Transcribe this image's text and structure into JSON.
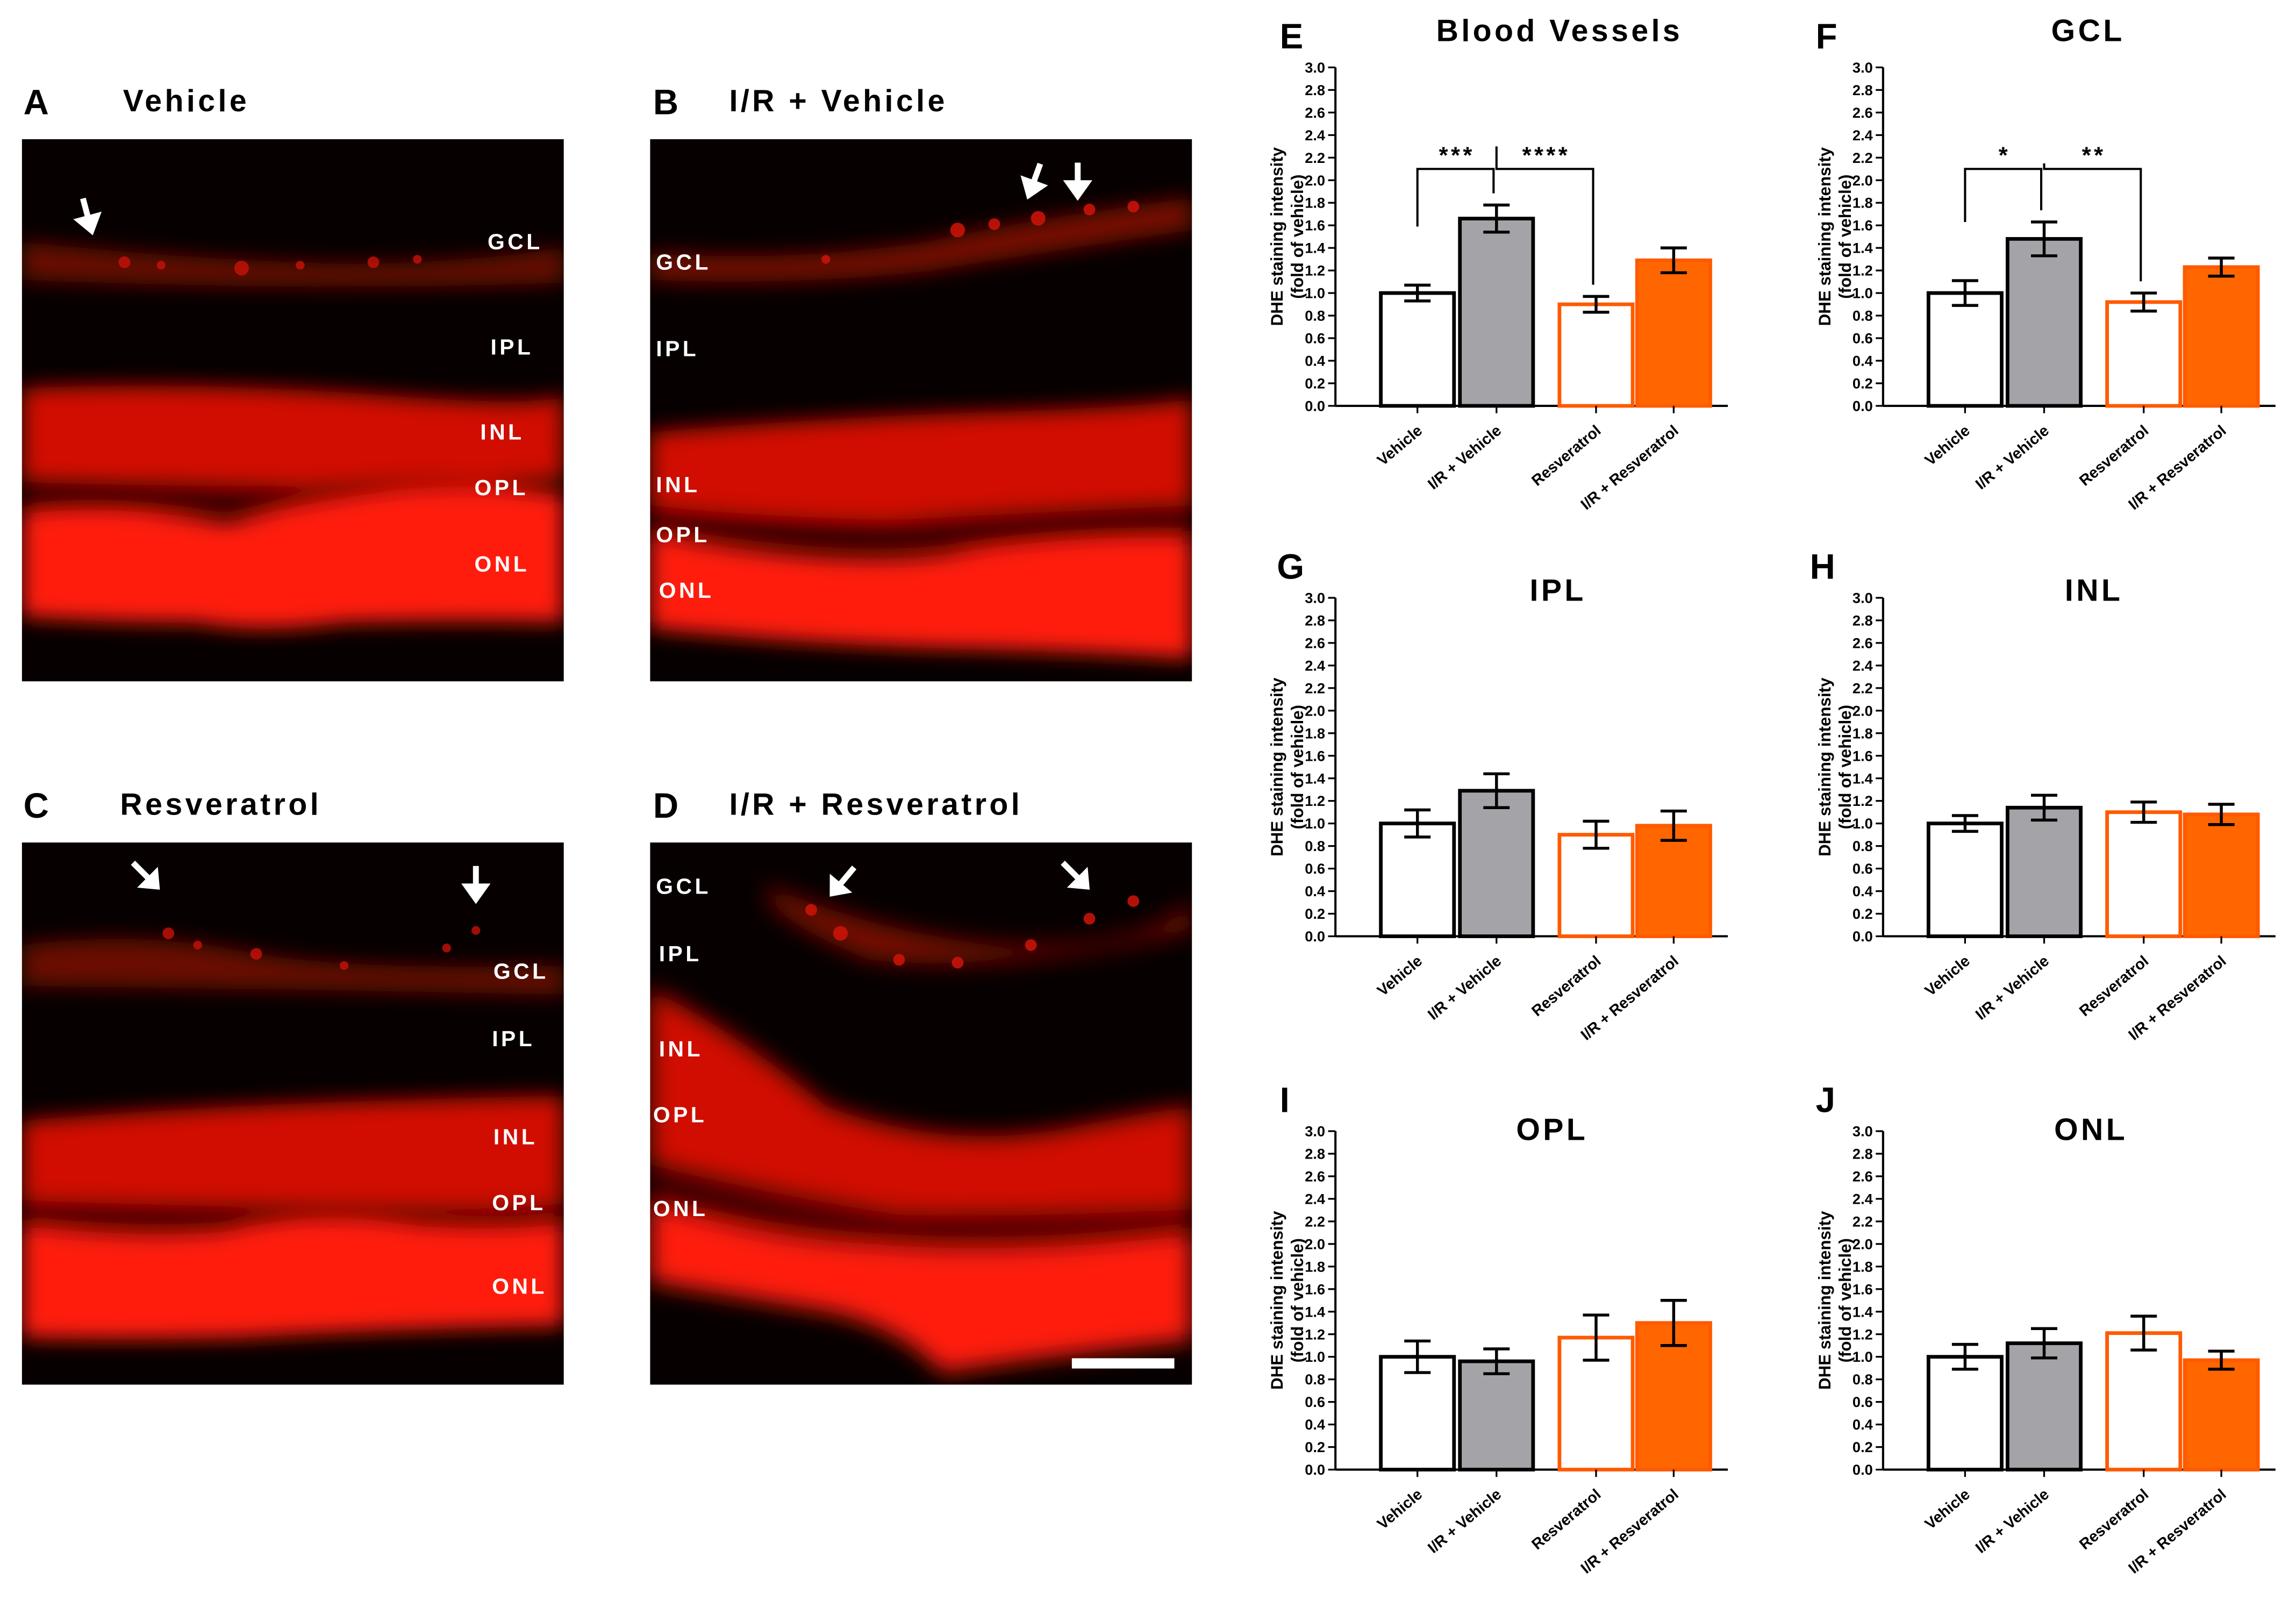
{
  "images": [
    {
      "letter": "A",
      "title": "Vehicle",
      "layers": [
        "GCL",
        "IPL",
        "INL",
        "OPL",
        "ONL"
      ]
    },
    {
      "letter": "B",
      "title": "I/R + Vehicle",
      "layers": [
        "GCL",
        "IPL",
        "INL",
        "OPL",
        "ONL"
      ]
    },
    {
      "letter": "C",
      "title": "Resveratrol",
      "layers": [
        "GCL",
        "IPL",
        "INL",
        "OPL",
        "ONL"
      ]
    },
    {
      "letter": "D",
      "title": "I/R + Resveratrol",
      "layers": [
        "GCL",
        "IPL",
        "INL",
        "OPL",
        "ONL"
      ]
    }
  ],
  "colors": {
    "fluorescence": "#ff1a0f",
    "vehicle_fill": "#ffffff",
    "vehicle_edge": "#000000",
    "ir_vehicle_fill": "#a3a3a8",
    "ir_vehicle_edge": "#000000",
    "resveratrol_fill": "#ffffff",
    "resveratrol_edge": "#ff5a00",
    "ir_resveratrol_fill": "#ff6600",
    "ir_resveratrol_edge": "#ff5a00"
  },
  "chart_data": [
    {
      "panel": "E",
      "type": "bar",
      "title": "Blood Vessels",
      "ylabel": "DHE staining intensity\n(fold of vehicle)",
      "ylim": [
        0,
        3.0
      ],
      "yticks": [
        "0.0",
        "0.2",
        "0.4",
        "0.6",
        "0.8",
        "1.0",
        "1.2",
        "1.4",
        "1.6",
        "1.8",
        "2.0",
        "2.2",
        "2.4",
        "2.6",
        "2.8",
        "3.0"
      ],
      "categories": [
        "Vehicle",
        "I/R + Vehicle",
        "Resveratrol",
        "I/R + Resveratrol"
      ],
      "values": [
        1.0,
        1.66,
        0.9,
        1.29
      ],
      "errors": [
        0.07,
        0.12,
        0.07,
        0.11
      ],
      "significance": [
        {
          "from": 0,
          "to": 1,
          "label": "***"
        },
        {
          "from": 1,
          "to": 2,
          "label": "****"
        }
      ]
    },
    {
      "panel": "F",
      "type": "bar",
      "title": "GCL",
      "ylabel": "DHE staining intensity\n(fold of vehicle)",
      "ylim": [
        0,
        3.0
      ],
      "yticks": [
        "0.0",
        "0.2",
        "0.4",
        "0.6",
        "0.8",
        "1.0",
        "1.2",
        "1.4",
        "1.6",
        "1.8",
        "2.0",
        "2.2",
        "2.4",
        "2.6",
        "2.8",
        "3.0"
      ],
      "categories": [
        "Vehicle",
        "I/R + Vehicle",
        "Resveratrol",
        "I/R + Resveratrol"
      ],
      "values": [
        1.0,
        1.48,
        0.92,
        1.23
      ],
      "errors": [
        0.11,
        0.15,
        0.08,
        0.08
      ],
      "significance": [
        {
          "from": 0,
          "to": 1,
          "label": "*"
        },
        {
          "from": 1,
          "to": 2,
          "label": "**"
        }
      ]
    },
    {
      "panel": "G",
      "type": "bar",
      "title": "IPL",
      "ylabel": "DHE staining intensity\n(fold of vehicle)",
      "ylim": [
        0,
        3.0
      ],
      "yticks": [
        "0.0",
        "0.2",
        "0.4",
        "0.6",
        "0.8",
        "1.0",
        "1.2",
        "1.4",
        "1.6",
        "1.8",
        "2.0",
        "2.2",
        "2.4",
        "2.6",
        "2.8",
        "3.0"
      ],
      "categories": [
        "Vehicle",
        "I/R + Vehicle",
        "Resveratrol",
        "I/R + Resveratrol"
      ],
      "values": [
        1.0,
        1.29,
        0.9,
        0.98
      ],
      "errors": [
        0.12,
        0.15,
        0.12,
        0.13
      ],
      "significance": []
    },
    {
      "panel": "H",
      "type": "bar",
      "title": "INL",
      "ylabel": "DHE staining intensity\n(fold of vehicle)",
      "ylim": [
        0,
        3.0
      ],
      "yticks": [
        "0.0",
        "0.2",
        "0.4",
        "0.6",
        "0.8",
        "1.0",
        "1.2",
        "1.4",
        "1.6",
        "1.8",
        "2.0",
        "2.2",
        "2.4",
        "2.6",
        "2.8",
        "3.0"
      ],
      "categories": [
        "Vehicle",
        "I/R + Vehicle",
        "Resveratrol",
        "I/R + Resveratrol"
      ],
      "values": [
        1.0,
        1.14,
        1.1,
        1.08
      ],
      "errors": [
        0.07,
        0.11,
        0.09,
        0.09
      ],
      "significance": []
    },
    {
      "panel": "I",
      "type": "bar",
      "title": "OPL",
      "ylabel": "DHE staining intensity\n(fold of vehicle)",
      "ylim": [
        0,
        3.0
      ],
      "yticks": [
        "0.0",
        "0.2",
        "0.4",
        "0.6",
        "0.8",
        "1.0",
        "1.2",
        "1.4",
        "1.6",
        "1.8",
        "2.0",
        "2.2",
        "2.4",
        "2.6",
        "2.8",
        "3.0"
      ],
      "categories": [
        "Vehicle",
        "I/R + Vehicle",
        "Resveratrol",
        "I/R + Resveratrol"
      ],
      "values": [
        1.0,
        0.96,
        1.17,
        1.3
      ],
      "errors": [
        0.14,
        0.11,
        0.2,
        0.2
      ],
      "significance": []
    },
    {
      "panel": "J",
      "type": "bar",
      "title": "ONL",
      "ylabel": "DHE staining intensity\n(fold of vehicle)",
      "ylim": [
        0,
        3.0
      ],
      "yticks": [
        "0.0",
        "0.2",
        "0.4",
        "0.6",
        "0.8",
        "1.0",
        "1.2",
        "1.4",
        "1.6",
        "1.8",
        "2.0",
        "2.2",
        "2.4",
        "2.6",
        "2.8",
        "3.0"
      ],
      "categories": [
        "Vehicle",
        "I/R + Vehicle",
        "Resveratrol",
        "I/R + Resveratrol"
      ],
      "values": [
        1.0,
        1.12,
        1.21,
        0.97
      ],
      "errors": [
        0.11,
        0.13,
        0.15,
        0.08
      ],
      "significance": []
    }
  ]
}
